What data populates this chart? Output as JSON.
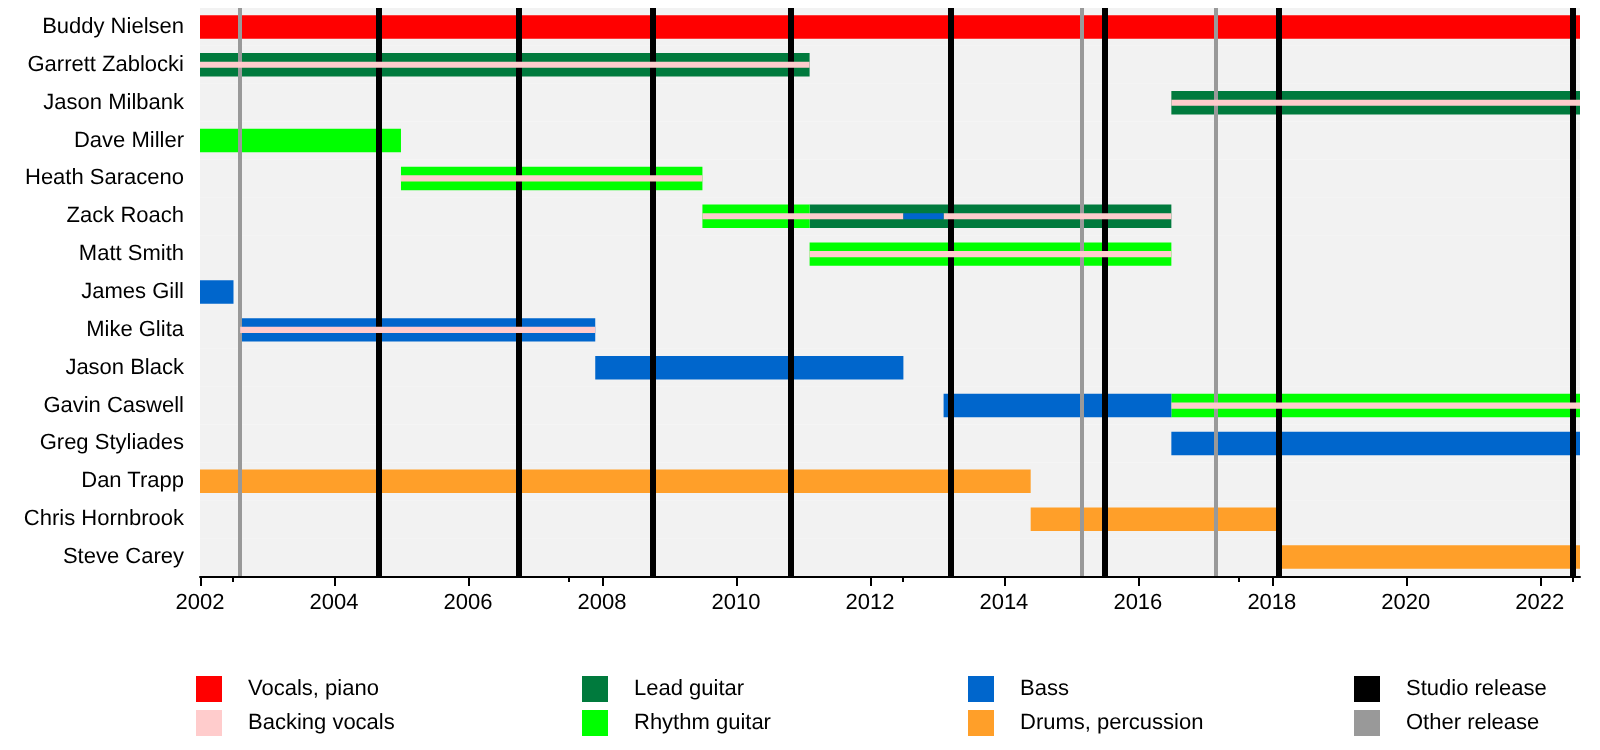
{
  "chart_data": {
    "type": "bar",
    "orientation": "horizontal",
    "categories": [
      "Buddy Nielsen",
      "Garrett Zablocki",
      "Jason Milbank",
      "Dave Miller",
      "Heath Saraceno",
      "Zack Roach",
      "Matt Smith",
      "James Gill",
      "Mike Glita",
      "Jason Black",
      "Gavin Caswell",
      "Greg Styliades",
      "Dan Trapp",
      "Chris Hornbrook",
      "Steve Carey"
    ],
    "xlim": [
      2002,
      2022.6
    ],
    "xticks": [
      2002,
      2004,
      2006,
      2008,
      2010,
      2012,
      2014,
      2016,
      2018,
      2020,
      2022
    ],
    "legend": "bottom",
    "grid": false,
    "series": [
      {
        "name": "Vocals, piano",
        "color": "#ff0000",
        "base": [
          2002,
          null,
          null,
          null,
          null,
          null,
          null,
          null,
          null,
          null,
          null,
          null,
          null,
          null,
          null
        ],
        "values": [
          20.6,
          null,
          null,
          null,
          null,
          null,
          null,
          null,
          null,
          null,
          null,
          null,
          null,
          null,
          null
        ]
      },
      {
        "name": "Backing vocals",
        "color": "#ffcccc",
        "base": [
          null,
          2002,
          2016.5,
          null,
          2005,
          2009.5,
          2011.1,
          null,
          2002.6,
          null,
          2016.5,
          null,
          null,
          null,
          null
        ],
        "values": [
          null,
          9.1,
          6.1,
          null,
          4.5,
          3.0,
          5.4,
          null,
          5.3,
          null,
          6.1,
          null,
          null,
          null,
          null
        ]
      },
      {
        "color": "#ffcccc",
        "base": [
          null,
          null,
          null,
          null,
          null,
          2013.1,
          null,
          null,
          null,
          null,
          null,
          null,
          null,
          null,
          null
        ],
        "values": [
          null,
          null,
          null,
          null,
          null,
          3.4,
          null,
          null,
          null,
          null,
          null,
          null,
          null,
          null,
          null
        ]
      },
      {
        "color": "#0066cc",
        "base": [
          null,
          null,
          null,
          null,
          null,
          2012.5,
          null,
          null,
          null,
          null,
          null,
          null,
          null,
          null,
          null
        ],
        "values": [
          null,
          null,
          null,
          null,
          null,
          0.6,
          null,
          null,
          null,
          null,
          null,
          null,
          null,
          null,
          null
        ]
      },
      {
        "name": "Lead guitar",
        "color": "#007a3d",
        "base": [
          null,
          2002,
          2016.5,
          null,
          null,
          2011.1,
          null,
          null,
          null,
          null,
          null,
          null,
          null,
          null,
          null
        ],
        "values": [
          null,
          9.1,
          6.1,
          null,
          null,
          5.4,
          null,
          null,
          null,
          null,
          null,
          null,
          null,
          null,
          null
        ]
      },
      {
        "name": "Rhythm guitar",
        "color": "#00ff00",
        "base": [
          null,
          null,
          null,
          2002,
          2005,
          2009.5,
          2011.1,
          null,
          null,
          null,
          2016.5,
          null,
          null,
          null,
          null
        ],
        "values": [
          null,
          null,
          null,
          3.0,
          4.5,
          1.6,
          5.4,
          null,
          null,
          null,
          6.1,
          null,
          null,
          null,
          null
        ]
      },
      {
        "name": "Bass",
        "color": "#0066cc",
        "base": [
          null,
          null,
          null,
          null,
          null,
          null,
          null,
          2002,
          2002.6,
          2007.9,
          2013.1,
          2016.5,
          null,
          null,
          null
        ],
        "values": [
          null,
          null,
          null,
          null,
          null,
          null,
          null,
          0.5,
          5.3,
          4.6,
          3.4,
          6.1,
          null,
          null,
          null
        ]
      },
      {
        "name": "Drums, percussion",
        "color": "#ff9f29",
        "base": [
          null,
          null,
          null,
          null,
          null,
          null,
          null,
          null,
          null,
          null,
          null,
          null,
          2002,
          2014.4,
          2018.1
        ],
        "values": [
          null,
          null,
          null,
          null,
          null,
          null,
          null,
          null,
          null,
          null,
          null,
          null,
          12.4,
          3.7,
          4.5
        ]
      }
    ],
    "ref_lines": [
      {
        "axis": "x",
        "value": 2004.65,
        "label": "Studio release",
        "color": "#000000"
      },
      {
        "axis": "x",
        "value": 2006.75,
        "color": "#000000"
      },
      {
        "axis": "x",
        "value": 2008.75,
        "color": "#000000"
      },
      {
        "axis": "x",
        "value": 2010.8,
        "color": "#000000"
      },
      {
        "axis": "x",
        "value": 2013.2,
        "color": "#000000"
      },
      {
        "axis": "x",
        "value": 2015.5,
        "color": "#000000"
      },
      {
        "axis": "x",
        "value": 2018.1,
        "color": "#000000"
      },
      {
        "axis": "x",
        "value": 2022.5,
        "color": "#000000"
      },
      {
        "axis": "x",
        "value": 2002.6,
        "label": "Other release",
        "color": "#999999"
      },
      {
        "axis": "x",
        "value": 2015.15,
        "color": "#999999"
      },
      {
        "axis": "x",
        "value": 2017.15,
        "color": "#999999"
      }
    ]
  }
}
